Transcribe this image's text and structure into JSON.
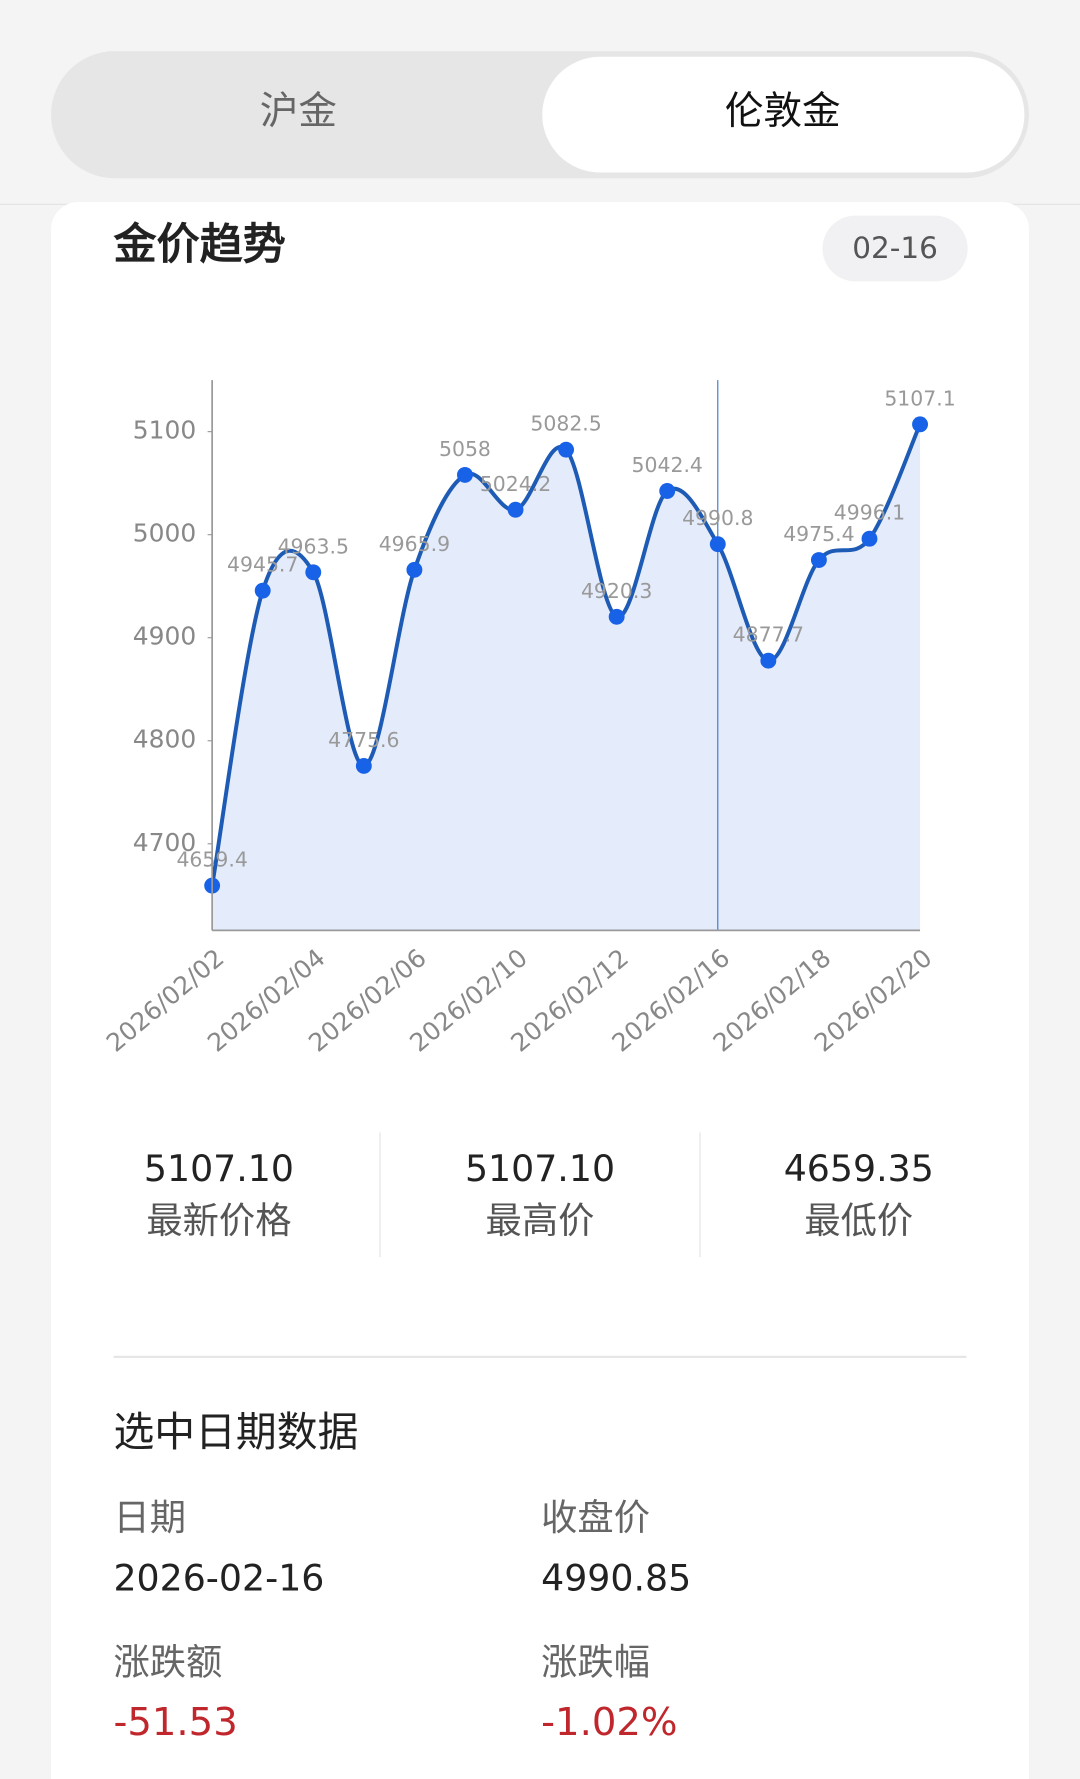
{
  "tabs": [
    "沪金",
    "伦敦金"
  ],
  "card": {
    "title": "金价趋势",
    "badge": "02-16"
  },
  "chart_data": {
    "type": "line",
    "categories": [
      "2026/02/02",
      null,
      "2026/02/04",
      null,
      "2026/02/06",
      null,
      "2026/02/10",
      null,
      "2026/02/12",
      null,
      "2026/02/16",
      null,
      "2026/02/18",
      null,
      "2026/02/20"
    ],
    "series": [
      {
        "name": "伦敦金",
        "color": "#1e5bb5",
        "values": [
          4659.4,
          4945.7,
          4963.5,
          4775.6,
          4965.9,
          5058,
          5024.2,
          5082.5,
          4920.3,
          5042.4,
          4990.8,
          4877.7,
          4975.4,
          4996.1,
          5107.1
        ]
      }
    ],
    "ylim": [
      4616,
      5150
    ],
    "yticks": [
      4700,
      4800,
      4900,
      5000,
      5100
    ]
  },
  "stats": [
    {
      "value": "5107.10",
      "label": "最新价格"
    },
    {
      "value": "5107.10",
      "label": "最高价"
    },
    {
      "value": "4659.35",
      "label": "最低价"
    }
  ],
  "selected": {
    "title": "选中日期数据",
    "fields": [
      {
        "label": "日期",
        "value": "2026-02-16"
      },
      {
        "label": "收盘价",
        "value": "4990.85"
      },
      {
        "label": "涨跌额",
        "value": "-51.53"
      },
      {
        "label": "涨跌幅",
        "value": "-1.02%"
      }
    ]
  }
}
